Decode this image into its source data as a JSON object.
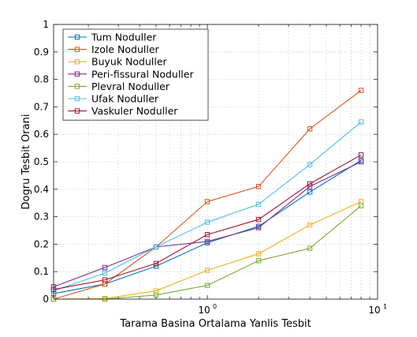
{
  "chart_data": {
    "type": "line",
    "xscale": "log",
    "xlim": [
      0.125,
      10
    ],
    "ylim": [
      0,
      1
    ],
    "xlabel": "Tarama Basina Ortalama Yanlis Tesbit",
    "ylabel": "Dogru Tesbit Orani",
    "grid": true,
    "legend_position": "top-left",
    "x_ticks": [
      {
        "value": 1,
        "base": "10",
        "exp": "0"
      },
      {
        "value": 10,
        "base": "10",
        "exp": "1"
      }
    ],
    "y_ticks": [
      "0",
      "0.1",
      "0.2",
      "0.3",
      "0.4",
      "0.5",
      "0.6",
      "0.7",
      "0.8",
      "0.9",
      "1"
    ],
    "x": [
      0.125,
      0.25,
      0.5,
      1,
      2,
      4,
      8
    ],
    "series": [
      {
        "name": "Tum Noduller",
        "color": "#0072bd",
        "values": [
          0.02,
          0.055,
          0.12,
          0.205,
          0.265,
          0.39,
          0.505
        ]
      },
      {
        "name": "Izole Noduller",
        "color": "#d95319",
        "values": [
          0.0,
          0.055,
          0.19,
          0.355,
          0.41,
          0.62,
          0.76
        ]
      },
      {
        "name": "Buyuk Noduller",
        "color": "#edb120",
        "values": [
          0.0,
          0.002,
          0.03,
          0.105,
          0.165,
          0.27,
          0.355
        ]
      },
      {
        "name": "Peri-fissural Noduller",
        "color": "#7e2f8e",
        "values": [
          0.045,
          0.115,
          0.19,
          0.21,
          0.26,
          0.41,
          0.5
        ]
      },
      {
        "name": "Plevral Noduller",
        "color": "#77ac30",
        "values": [
          0.0,
          0.0,
          0.015,
          0.05,
          0.14,
          0.185,
          0.34
        ]
      },
      {
        "name": "Ufak Noduller",
        "color": "#4dbeee",
        "values": [
          0.03,
          0.095,
          0.19,
          0.28,
          0.345,
          0.49,
          0.645
        ]
      },
      {
        "name": "Vaskuler Noduller",
        "color": "#a2142f",
        "values": [
          0.035,
          0.07,
          0.13,
          0.235,
          0.29,
          0.42,
          0.525
        ]
      }
    ]
  }
}
